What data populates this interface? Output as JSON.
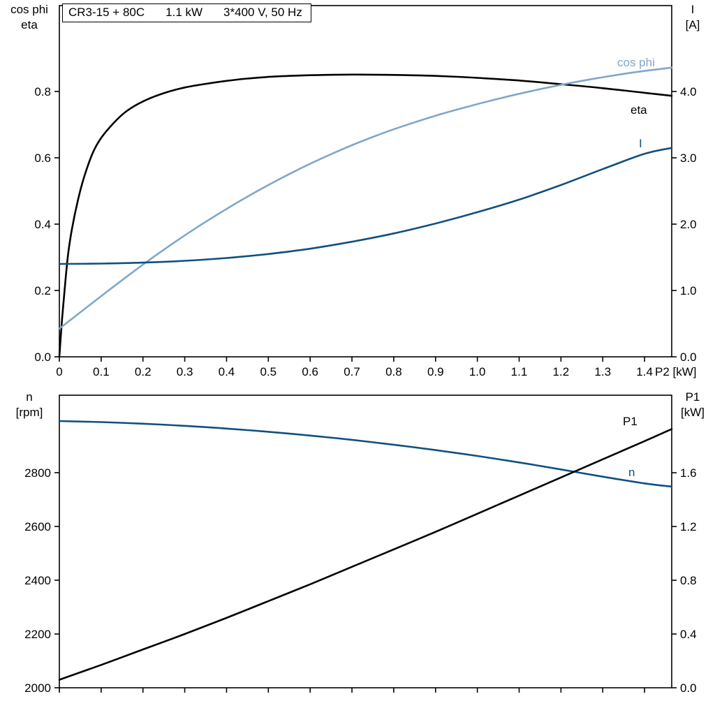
{
  "title": {
    "model": "CR3-15 + 80C",
    "power": "1.1 kW",
    "voltage": "3*400 V, 50 Hz"
  },
  "colors": {
    "eta": "#000000",
    "cos_phi": "#7fa7c9",
    "current": "#10507f",
    "speed": "#10507f",
    "p1": "#000000",
    "frame": "#000000",
    "background": "#ffffff"
  },
  "chart_data": [
    {
      "type": "line",
      "grid": false,
      "x_axis": {
        "title": "P2 [kW]",
        "range": [
          0,
          1.465
        ],
        "tick_values": [
          0,
          0.1,
          0.2,
          0.3,
          0.4,
          0.5,
          0.6,
          0.7,
          0.8,
          0.9,
          1.0,
          1.1,
          1.2,
          1.3,
          1.4
        ],
        "tick_labels": [
          "0",
          "0.1",
          "0.2",
          "0.3",
          "0.4",
          "0.5",
          "0.6",
          "0.7",
          "0.8",
          "0.9",
          "1.0",
          "1.1",
          "1.2",
          "1.3",
          "1.4"
        ]
      },
      "left_axis": {
        "name_line1": "cos phi",
        "name_line2": "eta",
        "range": [
          0,
          1.059
        ],
        "tick_values": [
          0,
          0.2,
          0.4,
          0.6,
          0.8
        ],
        "tick_labels": [
          "0.0",
          "0.2",
          "0.4",
          "0.6",
          "0.8"
        ]
      },
      "right_axis": {
        "name_line1": "I",
        "name_line2": "[A]",
        "range": [
          0,
          5.295
        ],
        "tick_values": [
          0,
          1,
          2,
          3,
          4
        ],
        "tick_labels": [
          "0.0",
          "1.0",
          "2.0",
          "3.0",
          "4.0"
        ]
      },
      "series": [
        {
          "name": "eta",
          "label": "eta",
          "axis": "left",
          "color_key": "eta",
          "x": [
            0,
            0.005,
            0.01,
            0.02,
            0.03,
            0.045,
            0.06,
            0.08,
            0.1,
            0.13,
            0.16,
            0.2,
            0.25,
            0.3,
            0.35,
            0.4,
            0.45,
            0.5,
            0.55,
            0.6,
            0.7,
            0.8,
            0.9,
            1.0,
            1.1,
            1.2,
            1.3,
            1.4,
            1.465
          ],
          "y": [
            0,
            0.09,
            0.165,
            0.3,
            0.385,
            0.475,
            0.545,
            0.615,
            0.66,
            0.705,
            0.74,
            0.77,
            0.795,
            0.812,
            0.823,
            0.832,
            0.839,
            0.844,
            0.847,
            0.849,
            0.851,
            0.85,
            0.847,
            0.841,
            0.833,
            0.822,
            0.81,
            0.796,
            0.787
          ]
        },
        {
          "name": "cos-phi",
          "label": "cos phi",
          "axis": "left",
          "color_key": "cos_phi",
          "x": [
            0,
            0.05,
            0.1,
            0.15,
            0.2,
            0.25,
            0.3,
            0.35,
            0.4,
            0.45,
            0.5,
            0.55,
            0.6,
            0.65,
            0.7,
            0.75,
            0.8,
            0.85,
            0.9,
            0.95,
            1.0,
            1.05,
            1.1,
            1.15,
            1.2,
            1.25,
            1.3,
            1.35,
            1.4,
            1.465
          ],
          "y": [
            0.085,
            0.134,
            0.183,
            0.231,
            0.278,
            0.323,
            0.366,
            0.407,
            0.446,
            0.483,
            0.518,
            0.551,
            0.582,
            0.611,
            0.638,
            0.663,
            0.686,
            0.707,
            0.727,
            0.745,
            0.762,
            0.778,
            0.793,
            0.807,
            0.82,
            0.832,
            0.843,
            0.853,
            0.862,
            0.872
          ]
        },
        {
          "name": "current",
          "label": "I",
          "axis": "right",
          "color_key": "current",
          "x": [
            0,
            0.1,
            0.2,
            0.3,
            0.4,
            0.5,
            0.6,
            0.7,
            0.8,
            0.9,
            1.0,
            1.1,
            1.2,
            1.3,
            1.4,
            1.465
          ],
          "y": [
            1.4,
            1.405,
            1.42,
            1.447,
            1.49,
            1.55,
            1.63,
            1.735,
            1.86,
            2.01,
            2.18,
            2.37,
            2.59,
            2.83,
            3.06,
            3.15
          ]
        }
      ]
    },
    {
      "type": "line",
      "grid": false,
      "x_axis": {
        "title": "",
        "range": [
          0,
          1.465
        ],
        "tick_values": [
          0,
          0.1,
          0.2,
          0.3,
          0.4,
          0.5,
          0.6,
          0.7,
          0.8,
          0.9,
          1.0,
          1.1,
          1.2,
          1.3,
          1.4
        ],
        "tick_labels": []
      },
      "left_axis": {
        "name_line1": "n",
        "name_line2": "[rpm]",
        "range": [
          2000,
          3088
        ],
        "tick_values": [
          2000,
          2200,
          2400,
          2600,
          2800
        ],
        "tick_labels": [
          "2000",
          "2200",
          "2400",
          "2600",
          "2800"
        ]
      },
      "right_axis": {
        "name_line1": "P1",
        "name_line2": "[kW]",
        "range": [
          0,
          2.177
        ],
        "tick_values": [
          0,
          0.4,
          0.8,
          1.2,
          1.6
        ],
        "tick_labels": [
          "0.0",
          "0.4",
          "0.8",
          "1.2",
          "1.6"
        ]
      },
      "series": [
        {
          "name": "speed",
          "label": "n",
          "axis": "left",
          "color_key": "speed",
          "x": [
            0,
            0.1,
            0.2,
            0.3,
            0.4,
            0.5,
            0.6,
            0.7,
            0.8,
            0.9,
            1.0,
            1.1,
            1.2,
            1.3,
            1.4,
            1.465
          ],
          "y": [
            2992,
            2988,
            2982,
            2974,
            2964,
            2952,
            2938,
            2922,
            2904,
            2884,
            2862,
            2838,
            2812,
            2785,
            2760,
            2748
          ]
        },
        {
          "name": "p1",
          "label": "P1",
          "axis": "right",
          "color_key": "p1",
          "x": [
            0,
            0.1,
            0.2,
            0.3,
            0.4,
            0.5,
            0.6,
            0.7,
            0.8,
            0.9,
            1.0,
            1.1,
            1.2,
            1.3,
            1.4,
            1.465
          ],
          "y": [
            0.06,
            0.17,
            0.285,
            0.4,
            0.52,
            0.645,
            0.77,
            0.9,
            1.03,
            1.16,
            1.295,
            1.43,
            1.565,
            1.7,
            1.835,
            1.925
          ]
        }
      ]
    }
  ]
}
